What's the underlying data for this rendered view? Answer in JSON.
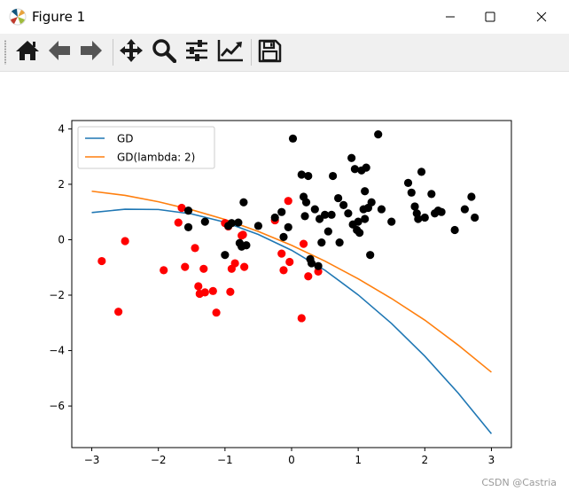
{
  "window": {
    "title": "Figure 1",
    "controls": [
      "minimize-icon",
      "maximize-icon",
      "close-icon"
    ]
  },
  "toolbar": {
    "buttons": [
      {
        "name": "home-button",
        "icon": "home-icon"
      },
      {
        "name": "back-button",
        "icon": "arrow-left-icon"
      },
      {
        "name": "forward-button",
        "icon": "arrow-right-icon"
      },
      {
        "name": "pan-button",
        "icon": "move-icon"
      },
      {
        "name": "zoom-button",
        "icon": "magnifier-icon"
      },
      {
        "name": "configure-subplots-button",
        "icon": "sliders-icon"
      },
      {
        "name": "edit-axes-button",
        "icon": "line-chart-icon"
      },
      {
        "name": "save-button",
        "icon": "floppy-disk-icon"
      }
    ]
  },
  "watermark": "CSDN @Castria",
  "chart_data": {
    "type": "scatter",
    "title": "",
    "xlabel": "",
    "ylabel": "",
    "xlim": [
      -3.3,
      3.3
    ],
    "ylim": [
      -7.5,
      4.3
    ],
    "xticks": [
      "−3",
      "−2",
      "−1",
      "0",
      "1",
      "2",
      "3"
    ],
    "xtick_values": [
      -3,
      -2,
      -1,
      0,
      1,
      2,
      3
    ],
    "yticks": [
      "4",
      "2",
      "0",
      "−2",
      "−4",
      "−6"
    ],
    "ytick_values": [
      4,
      2,
      0,
      -2,
      -4,
      -6
    ],
    "grid": false,
    "legend_position": "upper-left",
    "lines": [
      {
        "name": "GD",
        "color": "#1f77b4",
        "x": [
          -3,
          -2.5,
          -2,
          -1.5,
          -1,
          -0.5,
          0,
          0.5,
          1,
          1.5,
          2,
          2.5,
          3
        ],
        "y": [
          0.98,
          1.1,
          1.09,
          0.93,
          0.63,
          0.19,
          -0.38,
          -1.1,
          -1.99,
          -3.02,
          -4.2,
          -5.53,
          -7.0
        ]
      },
      {
        "name": "GD(lambda: 2)",
        "color": "#ff7f0e",
        "x": [
          -3,
          -2.5,
          -2,
          -1.5,
          -1,
          -0.5,
          0,
          0.5,
          1,
          1.5,
          2,
          2.5,
          3
        ],
        "y": [
          1.75,
          1.6,
          1.37,
          1.08,
          0.73,
          0.3,
          -0.2,
          -0.77,
          -1.41,
          -2.12,
          -2.9,
          -3.8,
          -4.78
        ]
      }
    ],
    "points_red": {
      "color": "#ff0000",
      "x": [
        -2.85,
        -2.5,
        -2.6,
        -1.92,
        -1.7,
        -1.65,
        -1.6,
        -1.45,
        -1.4,
        -1.38,
        -1.32,
        -1.3,
        -1.18,
        -1.13,
        -1.0,
        -0.95,
        -0.92,
        -0.9,
        -0.85,
        -0.75,
        -0.73,
        -0.71,
        -0.25,
        -0.15,
        -0.12,
        -0.05,
        -0.03,
        0.15,
        0.18,
        0.25,
        0.4
      ],
      "y": [
        -0.77,
        -0.05,
        -2.6,
        -1.1,
        0.62,
        1.15,
        -0.98,
        -0.3,
        -1.68,
        -1.95,
        -1.05,
        -1.9,
        -1.85,
        -2.63,
        0.6,
        0.48,
        -1.88,
        -1.05,
        -0.85,
        0.15,
        0.18,
        -0.98,
        0.7,
        -0.5,
        -1.1,
        1.4,
        -0.8,
        -2.83,
        -0.15,
        -1.32,
        -1.15
      ]
    },
    "points_black": {
      "color": "#000000",
      "x": [
        -1.55,
        -1.55,
        -1.3,
        -1.0,
        -0.9,
        -0.95,
        -0.8,
        -0.78,
        -0.75,
        -0.72,
        -0.68,
        -0.5,
        -0.25,
        -0.15,
        -0.12,
        -0.05,
        0.02,
        0.15,
        0.18,
        0.2,
        0.22,
        0.25,
        0.28,
        0.3,
        0.35,
        0.4,
        0.42,
        0.45,
        0.5,
        0.55,
        0.6,
        0.62,
        0.7,
        0.72,
        0.78,
        0.85,
        0.9,
        0.92,
        0.95,
        0.98,
        1.0,
        1.02,
        1.05,
        1.08,
        1.1,
        1.1,
        1.12,
        1.15,
        1.18,
        1.2,
        1.3,
        1.35,
        1.5,
        1.75,
        1.8,
        1.85,
        1.88,
        1.9,
        1.95,
        2.0,
        2.1,
        2.15,
        2.2,
        2.25,
        2.45,
        2.6,
        2.7,
        2.75
      ],
      "y": [
        1.05,
        0.45,
        0.65,
        -0.55,
        0.6,
        0.5,
        0.62,
        -0.12,
        -0.25,
        1.35,
        -0.2,
        0.5,
        0.8,
        1.0,
        0.1,
        0.45,
        3.65,
        2.35,
        1.55,
        0.85,
        1.35,
        2.3,
        -0.7,
        -0.85,
        1.1,
        -0.95,
        0.75,
        -0.1,
        0.9,
        0.3,
        0.9,
        2.3,
        1.5,
        -0.1,
        1.25,
        0.95,
        2.95,
        0.55,
        2.55,
        0.35,
        0.65,
        0.25,
        2.5,
        1.1,
        1.75,
        0.75,
        2.6,
        1.15,
        -0.55,
        1.35,
        3.8,
        1.1,
        0.65,
        2.05,
        1.7,
        1.2,
        0.95,
        0.75,
        2.45,
        0.8,
        1.65,
        0.95,
        1.05,
        1.0,
        0.35,
        1.1,
        1.55,
        0.8
      ]
    }
  }
}
